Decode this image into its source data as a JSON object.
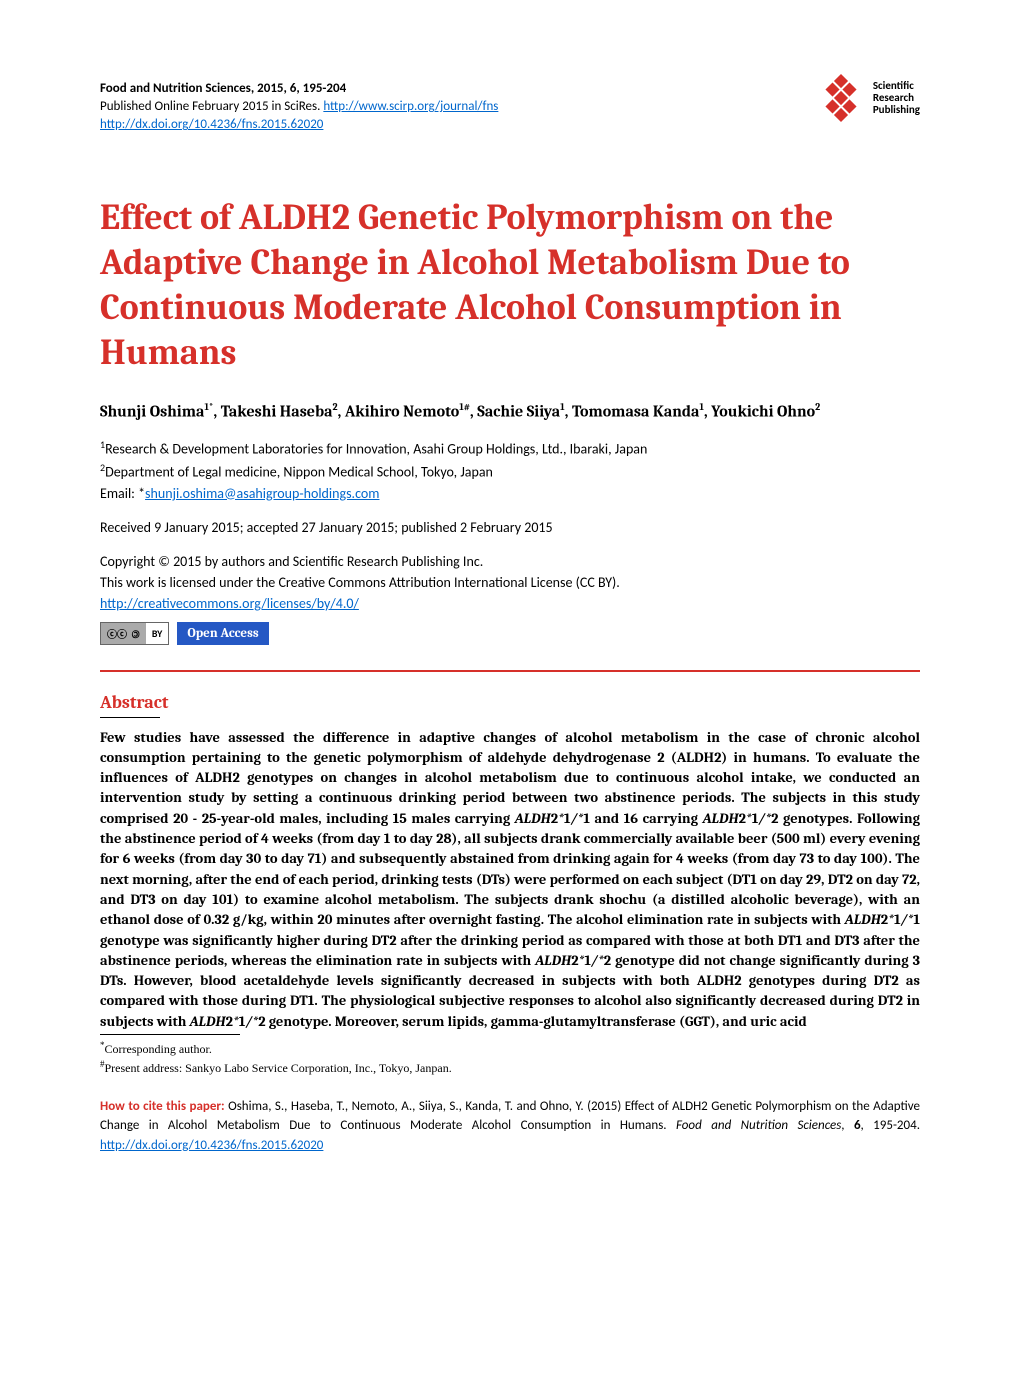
{
  "header": {
    "journal_line": "Food and Nutrition Sciences, 2015, 6, 195-204",
    "published_prefix": "Published Online February 2015 in SciRes. ",
    "journal_url": "http://www.scirp.org/journal/fns",
    "doi_url": "http://dx.doi.org/10.4236/fns.2015.62020",
    "logo_text1": "Scientific",
    "logo_text2": "Research",
    "logo_text3": "Publishing"
  },
  "title": "Effect of ALDH2 Genetic Polymorphism on the Adaptive Change in Alcohol Metabolism Due to Continuous Moderate Alcohol Consumption in Humans",
  "authors": "Shunji Oshima1*, Takeshi Haseba2, Akihiro Nemoto1#, Sachie Siiya1, Tomomasa Kanda1, Youkichi Ohno2",
  "affiliations": {
    "a1": "1Research & Development Laboratories for Innovation, Asahi Group Holdings, Ltd., Ibaraki, Japan",
    "a2": "2Department of Legal medicine, Nippon Medical School, Tokyo, Japan",
    "email_prefix": "Email: *",
    "email": "shunji.oshima@asahigroup-holdings.com"
  },
  "dates": "Received 9 January 2015; accepted 27 January 2015; published 2 February 2015",
  "copyright": {
    "l1": "Copyright © 2015 by authors and Scientific Research Publishing Inc.",
    "l2": "This work is licensed under the Creative Commons Attribution International License (CC BY).",
    "license_url": "http://creativecommons.org/licenses/by/4.0/"
  },
  "badges": {
    "cc": "cc",
    "by": "BY",
    "oa": "Open Access"
  },
  "abstract_title": "Abstract",
  "abstract": "Few studies have assessed the difference in adaptive changes of alcohol metabolism in the case of chronic alcohol consumption pertaining to the genetic polymorphism of aldehyde dehydrogenase 2 (ALDH2) in humans. To evaluate the influences of ALDH2 genotypes on changes in alcohol metabolism due to continuous alcohol intake, we conducted an intervention study by setting a continuous drinking period between two abstinence periods. The subjects in this study comprised 20 - 25-year-old males, including 15 males carrying ALDH2*1/*1 and 16 carrying ALDH2*1/*2 genotypes. Following the abstinence period of 4 weeks (from day 1 to day 28), all subjects drank commercially available beer (500 ml) every evening for 6 weeks (from day 30 to day 71) and subsequently abstained from drinking again for 4 weeks (from day 73 to day 100). The next morning, after the end of each period, drinking tests (DTs) were performed on each subject (DT1 on day 29, DT2 on day 72, and DT3 on day 101) to examine alcohol metabolism. The subjects drank shochu (a distilled alcoholic beverage), with an ethanol dose of 0.32 g/kg, within 20 minutes after overnight fasting. The alcohol elimination rate in subjects with ALDH2*1/*1 genotype was significantly higher during DT2 after the drinking period as compared with those at both DT1 and DT3 after the abstinence periods, whereas the elimination rate in subjects with ALDH2*1/*2 genotype did not change significantly during 3 DTs. However, blood acetaldehyde levels significantly decreased in subjects with both ALDH2 genotypes during DT2 as compared with those during DT1. The physiological subjective responses to alcohol also significantly decreased during DT2 in subjects with ALDH2*1/*2 genotype. Moreover, serum lipids, gamma-glutamyltransferase (GGT), and uric acid",
  "footnotes": {
    "f1": "*Corresponding author.",
    "f2": "#Present address: Sankyo Labo Service Corporation, Inc., Tokyo, Janpan."
  },
  "citation": {
    "label": "How to cite this paper: ",
    "text": "Oshima, S., Haseba, T., Nemoto, A., Siiya, S., Kanda, T. and Ohno, Y. (2015) Effect of ALDH2 Genetic Polymorphism on the Adaptive Change in Alcohol Metabolism Due to Continuous Moderate Alcohol Consumption in Humans. Food and Nutrition Sciences, 6, 195-204. ",
    "url": "http://dx.doi.org/10.4236/fns.2015.62020"
  }
}
